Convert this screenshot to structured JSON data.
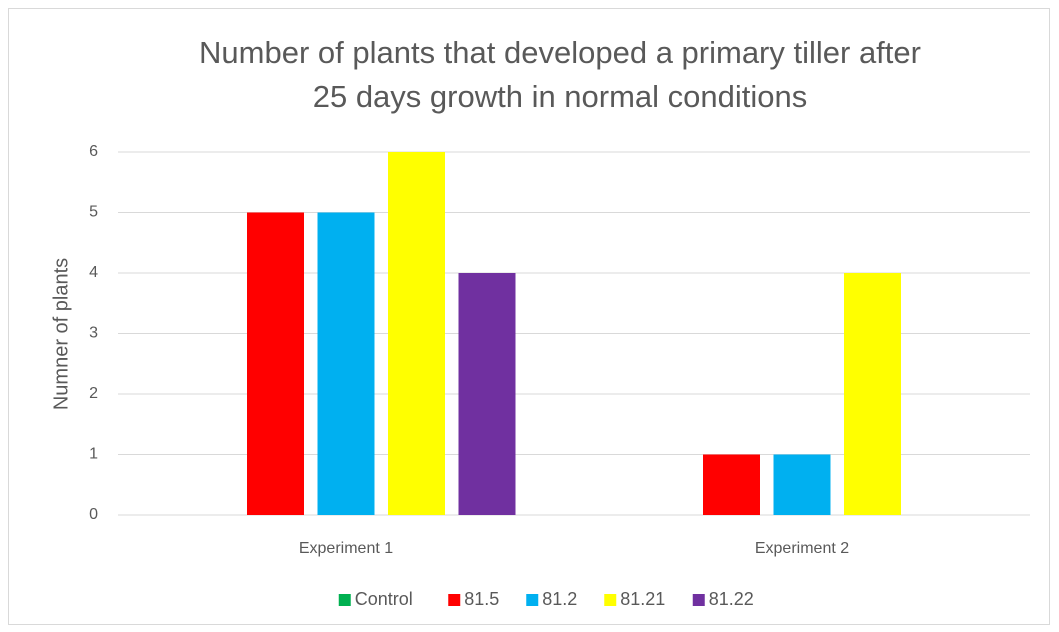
{
  "chart_data": {
    "type": "bar",
    "title": [
      "Number of plants that developed a primary tiller after",
      "25 days growth in normal conditions"
    ],
    "y_label": "Numner of plants",
    "categories": [
      "Experiment 1",
      "Experiment 2"
    ],
    "series": [
      {
        "name": "Control",
        "color": "#00b050",
        "values": [
          0,
          0
        ]
      },
      {
        "name": "81.5",
        "color": "#ff0000",
        "values": [
          5,
          1
        ]
      },
      {
        "name": "81.2",
        "color": "#00b0f0",
        "values": [
          5,
          1
        ]
      },
      {
        "name": "81.21",
        "color": "#ffff00",
        "values": [
          6,
          4
        ]
      },
      {
        "name": "81.22",
        "color": "#7030a0",
        "values": [
          4,
          0
        ]
      }
    ],
    "ylim": [
      0,
      6
    ],
    "yticks": [
      0,
      1,
      2,
      3,
      4,
      5,
      6
    ],
    "grid": true,
    "legend": "bottom"
  }
}
